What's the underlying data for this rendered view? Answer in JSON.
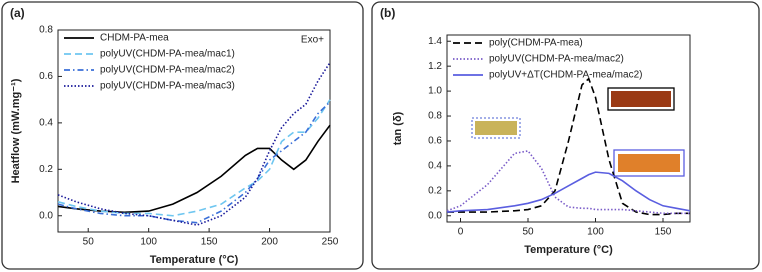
{
  "chart_data": [
    {
      "type": "line",
      "title": "(a)",
      "xlabel": "Temperature (°C)",
      "ylabel": "Heatflow (mW.mg⁻¹)",
      "annotation": "Exo+",
      "x": [
        25,
        40,
        60,
        80,
        100,
        120,
        140,
        160,
        180,
        190,
        200,
        210,
        220,
        230,
        240,
        250
      ],
      "xlim": [
        25,
        250
      ],
      "xticks": [
        50,
        100,
        150,
        200,
        250
      ],
      "ylim": [
        -0.07,
        0.8
      ],
      "yticks": [
        {
          "value": 0,
          "label": "0.0"
        },
        {
          "value": 0.2,
          "label": "0.2"
        },
        {
          "value": 0.4,
          "label": "0.4"
        },
        {
          "value": 0.6,
          "label": "0.6"
        },
        {
          "value": 0.8,
          "label": "0.8"
        }
      ],
      "legend": "upper left",
      "series": [
        {
          "name": "CHDM-PA-mea",
          "color": "#000000",
          "line_style": "solid",
          "values": [
            0.04,
            0.03,
            0.02,
            0.015,
            0.02,
            0.05,
            0.1,
            0.17,
            0.26,
            0.29,
            0.29,
            0.24,
            0.2,
            0.24,
            0.32,
            0.39
          ]
        },
        {
          "name": "polyUV(CHDM-PA-mea/mac1)",
          "color": "#6ec6f0",
          "line_style": "dashed",
          "values": [
            0.06,
            0.04,
            0.02,
            0.01,
            0.01,
            0.0,
            0.02,
            0.05,
            0.12,
            0.15,
            0.2,
            0.32,
            0.36,
            0.36,
            0.42,
            0.5
          ]
        },
        {
          "name": "polyUV(CHDM-PA-mea/mac2)",
          "color": "#3a6fd8",
          "line_style": "dashdot",
          "values": [
            0.05,
            0.03,
            0.01,
            0.0,
            0.0,
            -0.02,
            -0.03,
            0.02,
            0.1,
            0.16,
            0.24,
            0.28,
            0.32,
            0.36,
            0.44,
            0.49
          ]
        },
        {
          "name": "polyUV(CHDM-PA-mea/mac3)",
          "color": "#1a1a9a",
          "line_style": "dotted",
          "values": [
            0.09,
            0.06,
            0.03,
            0.01,
            0.0,
            -0.02,
            -0.04,
            0.0,
            0.08,
            0.16,
            0.28,
            0.38,
            0.44,
            0.48,
            0.58,
            0.66
          ]
        }
      ]
    },
    {
      "type": "line",
      "title": "(b)",
      "xlabel": "Temperature (°C)",
      "ylabel": "tan (δ)",
      "x": [
        -10,
        0,
        20,
        40,
        50,
        60,
        70,
        80,
        90,
        95,
        100,
        110,
        120,
        130,
        140,
        150,
        160,
        170
      ],
      "xlim": [
        -10,
        170
      ],
      "xticks": [
        0,
        50,
        100,
        150
      ],
      "ylim": [
        -0.05,
        1.45
      ],
      "yticks": [
        {
          "value": 0,
          "label": "0.0"
        },
        {
          "value": 0.2,
          "label": "0.2"
        },
        {
          "value": 0.4,
          "label": "0.4"
        },
        {
          "value": 0.6,
          "label": "0.6"
        },
        {
          "value": 0.8,
          "label": "0.8"
        },
        {
          "value": 1.0,
          "label": "1.0"
        },
        {
          "value": 1.2,
          "label": "1.2"
        },
        {
          "value": 1.4,
          "label": "1.4"
        }
      ],
      "legend": "upper left",
      "series": [
        {
          "name": "poly(CHDM-PA-mea)",
          "color": "#000000",
          "line_style": "dashed",
          "values": [
            0.03,
            0.03,
            0.03,
            0.04,
            0.05,
            0.08,
            0.2,
            0.6,
            1.05,
            1.1,
            0.95,
            0.45,
            0.1,
            0.03,
            0.01,
            0.01,
            0.02,
            0.02
          ]
        },
        {
          "name": "polyUV(CHDM-PA-mea/mac2)",
          "color": "#7a5cc8",
          "line_style": "dotted",
          "values": [
            0.04,
            0.08,
            0.25,
            0.5,
            0.52,
            0.38,
            0.15,
            0.07,
            0.06,
            0.06,
            0.05,
            0.05,
            0.05,
            0.04,
            0.03,
            0.02,
            0.02,
            0.02
          ]
        },
        {
          "name": "polyUV+ΔT(CHDM-PA-mea/mac2)",
          "color": "#5a5ee0",
          "line_style": "solid",
          "values": [
            0.03,
            0.04,
            0.05,
            0.08,
            0.1,
            0.13,
            0.18,
            0.24,
            0.3,
            0.33,
            0.35,
            0.34,
            0.28,
            0.2,
            0.13,
            0.08,
            0.06,
            0.04
          ]
        }
      ]
    }
  ]
}
